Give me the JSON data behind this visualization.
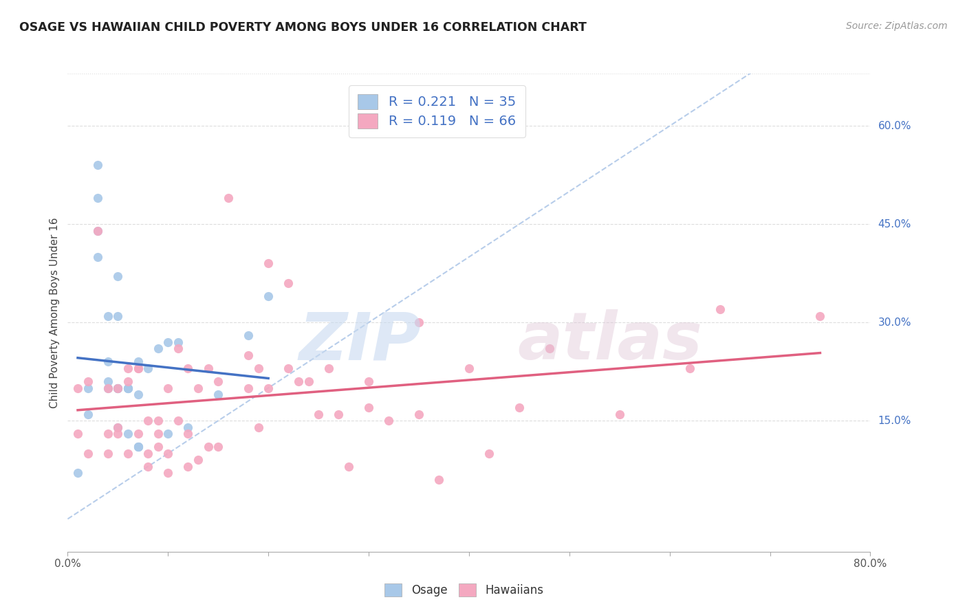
{
  "title": "OSAGE VS HAWAIIAN CHILD POVERTY AMONG BOYS UNDER 16 CORRELATION CHART",
  "source": "Source: ZipAtlas.com",
  "ylabel": "Child Poverty Among Boys Under 16",
  "xlim": [
    0.0,
    0.8
  ],
  "ylim": [
    -0.05,
    0.68
  ],
  "ytick_labels_right": [
    "15.0%",
    "30.0%",
    "45.0%",
    "60.0%"
  ],
  "ytick_values_right": [
    0.15,
    0.3,
    0.45,
    0.6
  ],
  "osage_color": "#a8c8e8",
  "hawaiian_color": "#f4a8c0",
  "osage_line_color": "#4472c4",
  "hawaiian_line_color": "#e06080",
  "diagonal_color": "#b0c8e8",
  "R_osage": 0.221,
  "N_osage": 35,
  "R_hawaiian": 0.119,
  "N_hawaiian": 66,
  "legend_text_color": "#4472c4",
  "background_color": "#ffffff",
  "osage_x": [
    0.01,
    0.02,
    0.02,
    0.03,
    0.03,
    0.03,
    0.03,
    0.04,
    0.04,
    0.04,
    0.04,
    0.05,
    0.05,
    0.05,
    0.05,
    0.05,
    0.05,
    0.06,
    0.06,
    0.06,
    0.06,
    0.07,
    0.07,
    0.07,
    0.07,
    0.07,
    0.08,
    0.09,
    0.1,
    0.1,
    0.11,
    0.12,
    0.15,
    0.18,
    0.2
  ],
  "osage_y": [
    0.07,
    0.2,
    0.16,
    0.54,
    0.49,
    0.44,
    0.4,
    0.24,
    0.21,
    0.31,
    0.2,
    0.37,
    0.31,
    0.2,
    0.2,
    0.2,
    0.14,
    0.2,
    0.2,
    0.2,
    0.13,
    0.11,
    0.11,
    0.11,
    0.24,
    0.19,
    0.23,
    0.26,
    0.13,
    0.27,
    0.27,
    0.14,
    0.19,
    0.28,
    0.34
  ],
  "hawaiian_x": [
    0.01,
    0.01,
    0.02,
    0.02,
    0.03,
    0.04,
    0.04,
    0.04,
    0.05,
    0.05,
    0.05,
    0.06,
    0.06,
    0.06,
    0.07,
    0.07,
    0.07,
    0.08,
    0.08,
    0.08,
    0.09,
    0.09,
    0.09,
    0.1,
    0.1,
    0.1,
    0.11,
    0.11,
    0.12,
    0.12,
    0.12,
    0.13,
    0.13,
    0.14,
    0.14,
    0.15,
    0.15,
    0.16,
    0.18,
    0.18,
    0.19,
    0.19,
    0.2,
    0.2,
    0.22,
    0.22,
    0.23,
    0.24,
    0.25,
    0.26,
    0.27,
    0.28,
    0.3,
    0.3,
    0.32,
    0.35,
    0.35,
    0.37,
    0.4,
    0.42,
    0.45,
    0.48,
    0.55,
    0.62,
    0.65,
    0.75
  ],
  "hawaiian_y": [
    0.2,
    0.13,
    0.21,
    0.1,
    0.44,
    0.2,
    0.13,
    0.1,
    0.2,
    0.14,
    0.13,
    0.23,
    0.21,
    0.1,
    0.23,
    0.23,
    0.13,
    0.15,
    0.1,
    0.08,
    0.15,
    0.13,
    0.11,
    0.2,
    0.1,
    0.07,
    0.26,
    0.15,
    0.23,
    0.13,
    0.08,
    0.2,
    0.09,
    0.23,
    0.11,
    0.21,
    0.11,
    0.49,
    0.25,
    0.2,
    0.23,
    0.14,
    0.39,
    0.2,
    0.36,
    0.23,
    0.21,
    0.21,
    0.16,
    0.23,
    0.16,
    0.08,
    0.21,
    0.17,
    0.15,
    0.16,
    0.3,
    0.06,
    0.23,
    0.1,
    0.17,
    0.26,
    0.16,
    0.23,
    0.32,
    0.31
  ]
}
